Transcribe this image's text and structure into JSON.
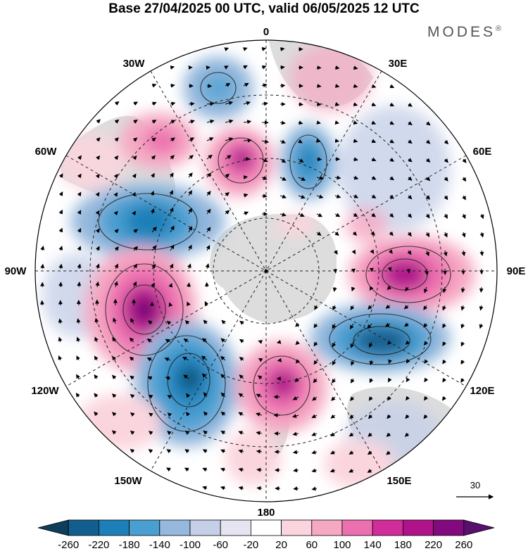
{
  "title": "Base 27/04/2025 00 UTC, valid 06/05/2025 12 UTC",
  "brand": "MODES",
  "brand_mark": "®",
  "map": {
    "projection": "south polar stereographic",
    "meridian_labels": [
      "0",
      "30E",
      "60E",
      "90E",
      "120E",
      "150E",
      "180",
      "150W",
      "120W",
      "90W",
      "60W",
      "30W"
    ],
    "reference_vector_label": "30",
    "colors": {
      "positive_strong": "#7b0a82",
      "positive": "#c81a9a",
      "positive_light": "#f2a3c3",
      "negative_strong": "#0f4a73",
      "negative": "#2d7fb8",
      "negative_light": "#b9c9e4",
      "land": "#d9d9d9"
    }
  },
  "colorbar": {
    "tick_labels": [
      "-260",
      "-220",
      "-180",
      "-140",
      "-100",
      "-60",
      "-20",
      "20",
      "60",
      "100",
      "140",
      "180",
      "220",
      "260"
    ],
    "colors": [
      "#0f3d5c",
      "#125f8f",
      "#1d7fb8",
      "#4a9fd1",
      "#95b8dc",
      "#c5d0e8",
      "#e5e5f2",
      "#ffffff",
      "#fbd5dd",
      "#f5a8c2",
      "#ec6fb0",
      "#d02c9a",
      "#b0128a",
      "#830a7e",
      "#5a0f6e"
    ]
  }
}
